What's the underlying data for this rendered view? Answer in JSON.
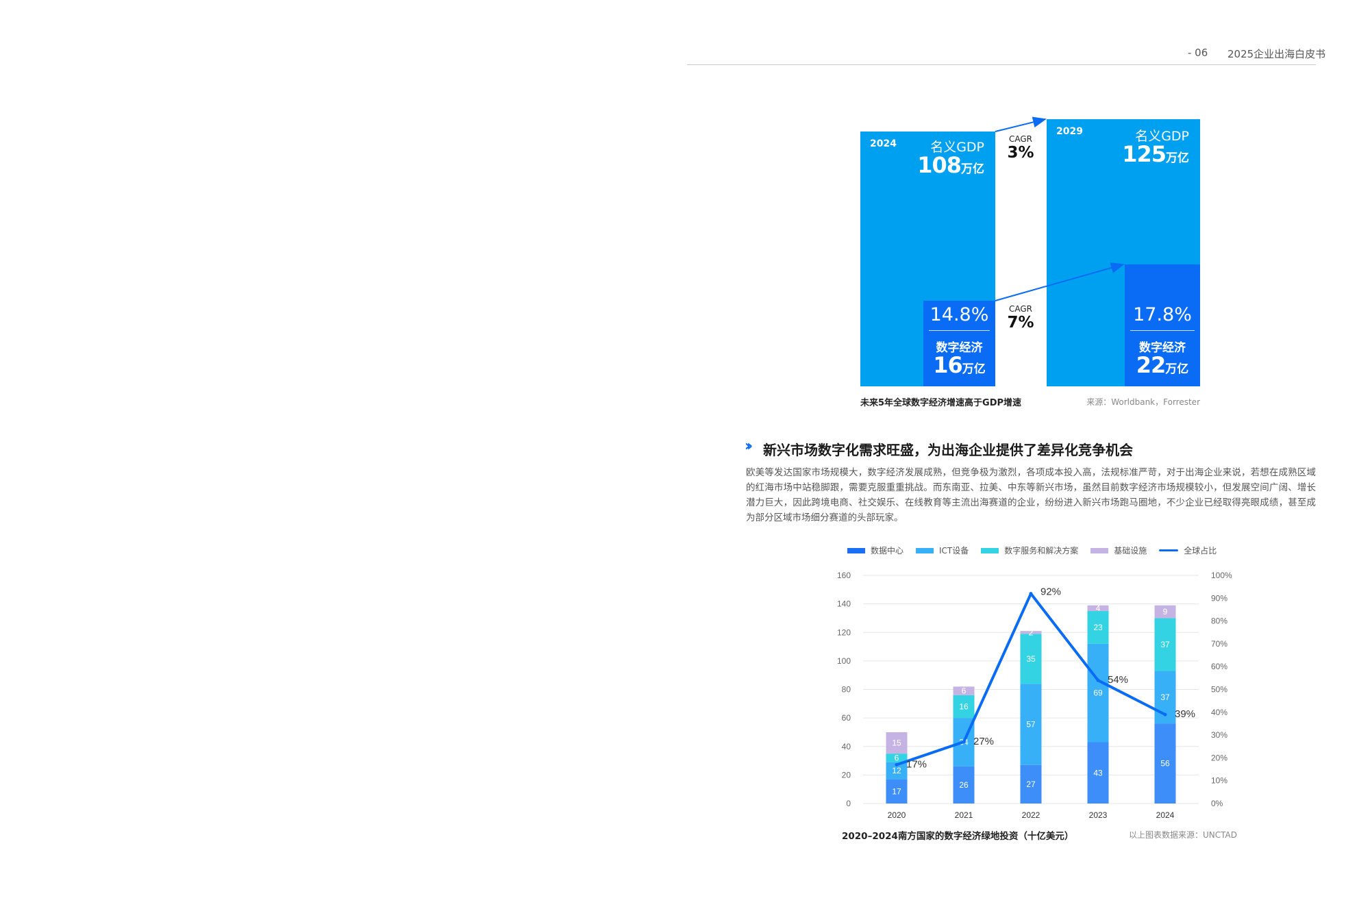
{
  "header": {
    "page_number": "- 06",
    "doc_title": "2025企业出海白皮书"
  },
  "gdp_figure": {
    "left": {
      "year": "2024",
      "gdp_label": "名义GDP",
      "gdp_value": "108",
      "unit": "万亿",
      "digital_share": "14.8%",
      "digital_label": "数字经济",
      "digital_value": "16"
    },
    "right": {
      "year": "2029",
      "gdp_label": "名义GDP",
      "gdp_value": "125",
      "unit": "万亿",
      "digital_share": "17.8%",
      "digital_label": "数字经济",
      "digital_value": "22"
    },
    "cagr_gdp": {
      "label": "CAGR",
      "value": "3%"
    },
    "cagr_digital": {
      "label": "CAGR",
      "value": "7%"
    },
    "caption": "未来5年全球数字经济增速高于GDP增速",
    "source": "来源：Worldbank，Forrester",
    "colors": {
      "gdp": "#00a0f0",
      "digital": "#0a6cf5"
    }
  },
  "section": {
    "title": "新兴市场数字化需求旺盛，为出海企业提供了差异化竞争机会",
    "paragraph": "欧美等发达国家市场规模大，数字经济发展成熟，但竞争极为激烈，各项成本投入高，法规标准严苛，对于出海企业来说，若想在成熟区域的红海市场中站稳脚跟，需要克服重重挑战。而东南亚、拉美、中东等新兴市场，虽然目前数字经济市场规模较小，但发展空间广阔、增长潜力巨大，因此跨境电商、社交娱乐、在线教育等主流出海赛道的企业，纷纷进入新兴市场跑马圈地，不少企业已经取得亮眼成绩，甚至成为部分区域市场细分赛道的头部玩家。"
  },
  "chart_data": {
    "type": "bar",
    "stacked": true,
    "categories": [
      "2020",
      "2021",
      "2022",
      "2023",
      "2024"
    ],
    "series": [
      {
        "name": "数据中心",
        "values": [
          17,
          26,
          27,
          43,
          56
        ],
        "color": "#3d8ef8"
      },
      {
        "name": "ICT设备",
        "values": [
          12,
          34,
          57,
          69,
          37
        ],
        "color": "#38b0f8"
      },
      {
        "name": "数字服务和解决方案",
        "values": [
          6,
          16,
          35,
          23,
          37
        ],
        "color": "#34d3e3"
      },
      {
        "name": "基础设施",
        "values": [
          15,
          6,
          2,
          4,
          9
        ],
        "color": "#c5b4e3"
      }
    ],
    "line_series": {
      "name": "全球占比",
      "values": [
        17,
        27,
        92,
        54,
        39
      ],
      "labels": [
        "17%",
        "27%",
        "92%",
        "54%",
        "39%"
      ],
      "color": "#0a6cf5",
      "axis": "right"
    },
    "ylim": [
      0,
      160
    ],
    "yticks": [
      "0",
      "20",
      "40",
      "60",
      "80",
      "100",
      "120",
      "140",
      "160"
    ],
    "y2lim": [
      0,
      100
    ],
    "y2ticks": [
      "0%",
      "10%",
      "20%",
      "30%",
      "40%",
      "50%",
      "60%",
      "70%",
      "80%",
      "90%",
      "100%"
    ],
    "legend_position": "top",
    "grid": true,
    "caption": "2020–2024南方国家的数字经济绿地投资（十亿美元）",
    "source": "以上图表数据来源：UNCTAD"
  }
}
